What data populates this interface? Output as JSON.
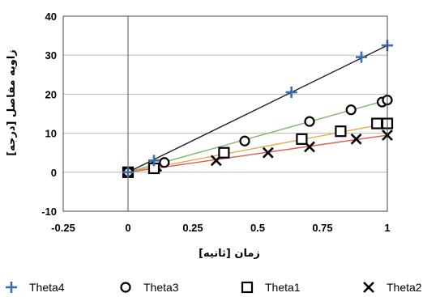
{
  "chart_data": {
    "type": "scatter",
    "xlabel": "زمان [ثانیه]",
    "ylabel": "زاویه مفاصل [درجه]",
    "xlim": [
      -0.25,
      1
    ],
    "ylim": [
      -10,
      40
    ],
    "x_ticks": [
      "-0.25",
      "0",
      "0.25",
      "0.5",
      "0.75",
      "1"
    ],
    "y_ticks": [
      "-10",
      "0",
      "10",
      "20",
      "30",
      "40"
    ],
    "grid": "horizontal",
    "legend_position": "bottom",
    "series": [
      {
        "name": "Theta4",
        "marker": "plus",
        "color": "#3b6ea5",
        "points": [
          [
            0,
            0
          ],
          [
            0.1,
            3
          ],
          [
            0.63,
            20.5
          ],
          [
            0.9,
            29.5
          ],
          [
            1.0,
            32.5
          ]
        ],
        "trend": {
          "slope": 32.5,
          "intercept": 0,
          "x_range": [
            0,
            1.0
          ],
          "color": "#222222"
        }
      },
      {
        "name": "Theta3",
        "marker": "circle",
        "color": "#000000",
        "points": [
          [
            0,
            0
          ],
          [
            0.14,
            2.5
          ],
          [
            0.45,
            8
          ],
          [
            0.7,
            13
          ],
          [
            0.86,
            16
          ],
          [
            0.98,
            18
          ],
          [
            1.0,
            18.5
          ]
        ],
        "trend": {
          "slope": 18.5,
          "intercept": 0,
          "x_range": [
            0,
            1.0
          ],
          "color": "#7db86a"
        }
      },
      {
        "name": "Theta1",
        "marker": "square",
        "color": "#000000",
        "points": [
          [
            0,
            0
          ],
          [
            0.1,
            1
          ],
          [
            0.37,
            5
          ],
          [
            0.67,
            8.5
          ],
          [
            0.82,
            10.5
          ],
          [
            0.96,
            12.5
          ],
          [
            1.0,
            12.5
          ]
        ],
        "trend": {
          "slope": 12.5,
          "intercept": 0,
          "x_range": [
            0,
            1.0
          ],
          "color": "#e8a94b"
        }
      },
      {
        "name": "Theta2",
        "marker": "x",
        "color": "#000000",
        "points": [
          [
            0,
            0
          ],
          [
            0.11,
            1.5
          ],
          [
            0.34,
            3
          ],
          [
            0.54,
            5
          ],
          [
            0.7,
            6.5
          ],
          [
            0.88,
            8.5
          ],
          [
            1.0,
            9.5
          ]
        ],
        "trend": {
          "slope": 9.5,
          "intercept": 0,
          "x_range": [
            0,
            1.0
          ],
          "color": "#e05a4b"
        }
      }
    ]
  }
}
